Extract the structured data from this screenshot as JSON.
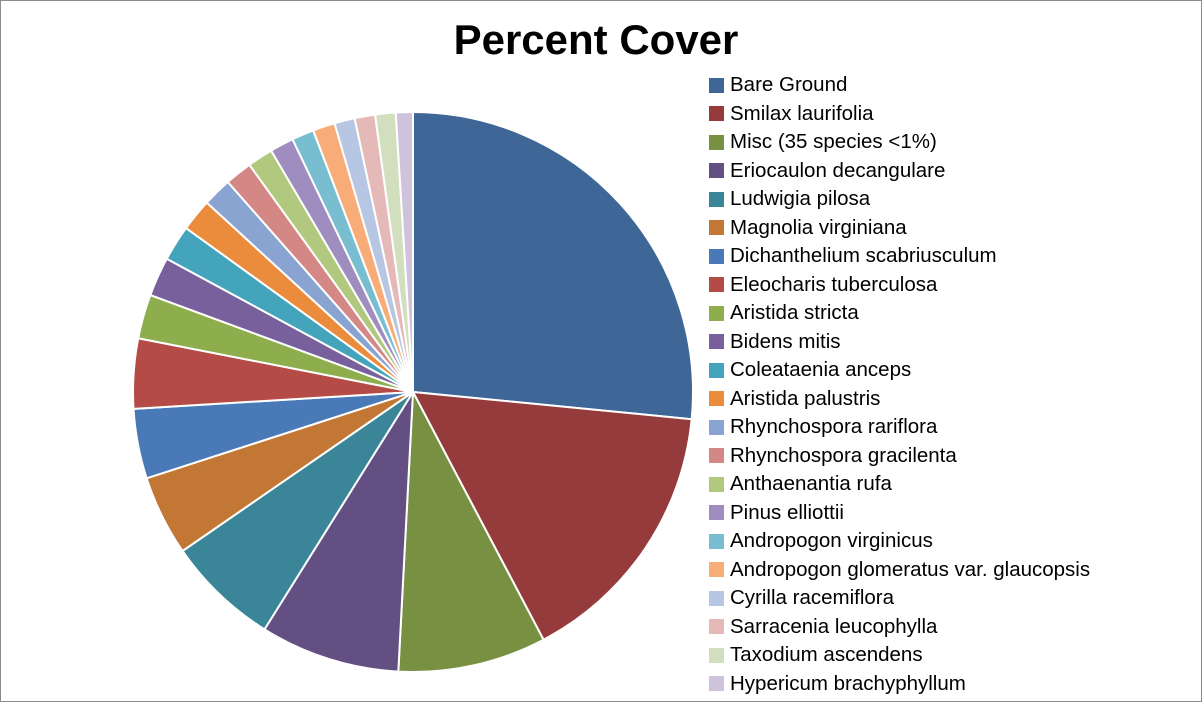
{
  "chart_data": {
    "type": "pie",
    "title": "Percent Cover",
    "legend_position": "right",
    "start_angle": "12 o'clock",
    "direction": "clockwise",
    "slices": [
      {
        "label": "Bare Ground",
        "value": 27.0,
        "color": "#3E6696"
      },
      {
        "label": "Smilax laurifolia",
        "value": 16.0,
        "color": "#953B3B"
      },
      {
        "label": "Misc (35 species <1%)",
        "value": 8.7,
        "color": "#789042"
      },
      {
        "label": "Eriocaulon decangulare",
        "value": 8.2,
        "color": "#634F81"
      },
      {
        "label": "Ludwigia pilosa",
        "value": 6.6,
        "color": "#3A8597"
      },
      {
        "label": "Magnolia virginiana",
        "value": 4.7,
        "color": "#C27735"
      },
      {
        "label": "Dichanthelium scabriusculum",
        "value": 4.1,
        "color": "#4A79B8"
      },
      {
        "label": "Eleocharis tuberculosa",
        "value": 4.1,
        "color": "#B54B47"
      },
      {
        "label": "Aristida stricta",
        "value": 2.6,
        "color": "#8EAE4E"
      },
      {
        "label": "Bidens mitis",
        "value": 2.3,
        "color": "#77609C"
      },
      {
        "label": "Coleataenia anceps",
        "value": 2.1,
        "color": "#44A4BB"
      },
      {
        "label": "Aristida palustris",
        "value": 1.9,
        "color": "#EA8C3C"
      },
      {
        "label": "Rhynchospora rariflora",
        "value": 1.7,
        "color": "#8AA4D1"
      },
      {
        "label": "Rhynchospora gracilenta",
        "value": 1.6,
        "color": "#D38886"
      },
      {
        "label": "Anthaenantia rufa",
        "value": 1.5,
        "color": "#B1C97E"
      },
      {
        "label": "Pinus elliottii",
        "value": 1.4,
        "color": "#A08DBF"
      },
      {
        "label": "Andropogon virginicus",
        "value": 1.3,
        "color": "#79BED0"
      },
      {
        "label": "Andropogon glomeratus var. glaucopsis",
        "value": 1.3,
        "color": "#F8AD78"
      },
      {
        "label": "Cyrilla racemiflora",
        "value": 1.2,
        "color": "#B7C6E3"
      },
      {
        "label": "Sarracenia leucophylla",
        "value": 1.2,
        "color": "#E5B9B8"
      },
      {
        "label": "Taxodium ascendens",
        "value": 1.2,
        "color": "#D1DFBE"
      },
      {
        "label": "Hypericum brachyphyllum",
        "value": 1.0,
        "color": "#CEC3DA"
      }
    ]
  }
}
